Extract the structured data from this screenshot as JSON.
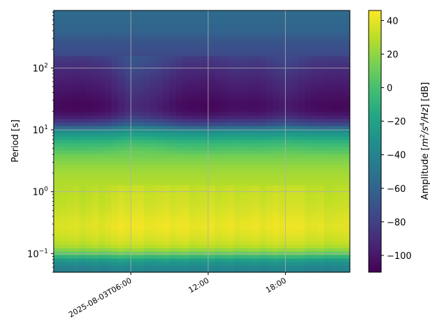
{
  "chart_data": {
    "type": "heatmap",
    "title": "",
    "xlabel": "",
    "ylabel": "Period [s]",
    "x_tick_labels": [
      {
        "label": "2025-08-03T06:00",
        "hour": 6
      },
      {
        "label": "12:00",
        "hour": 12
      },
      {
        "label": "18:00",
        "hour": 18
      }
    ],
    "x_range_hours": [
      0,
      23
    ],
    "y_scale": "log",
    "y_range": [
      0.05,
      850
    ],
    "y_tick_labels": [
      {
        "value": 0.1,
        "base": "10",
        "exp": "−1"
      },
      {
        "value": 1,
        "base": "10",
        "exp": "0"
      },
      {
        "value": 10,
        "base": "10",
        "exp": "1"
      },
      {
        "value": 100,
        "base": "10",
        "exp": "2"
      }
    ],
    "grid": true,
    "colorbar": {
      "colormap": "viridis",
      "range": [
        -110,
        46
      ],
      "label_prefix": "Amplitude [",
      "label_math": "m",
      "label_sup1": "2",
      "label_mid": "/s",
      "label_sup2": "4",
      "label_tail": "/Hz",
      "label_suffix": "] [dB]",
      "ticks": [
        "40",
        "20",
        "0",
        "−20",
        "−40",
        "−60",
        "−80",
        "−100"
      ],
      "tick_values": [
        40,
        20,
        0,
        -20,
        -40,
        -60,
        -80,
        -100
      ]
    },
    "profile": {
      "log10_period": [
        -1.3,
        -1.2,
        -1.1,
        -1.0,
        -0.9,
        -0.8,
        -0.7,
        -0.6,
        -0.5,
        -0.4,
        -0.3,
        -0.2,
        -0.1,
        0.0,
        0.2,
        0.4,
        0.6,
        0.8,
        1.0,
        1.1,
        1.2,
        1.3,
        1.4,
        1.5,
        1.6,
        1.8,
        2.0,
        2.2,
        2.4,
        2.6,
        2.93
      ],
      "amplitude_db": [
        -45,
        -40,
        -25,
        5,
        25,
        32,
        35,
        38,
        38,
        36,
        34,
        32,
        31,
        30,
        27,
        22,
        12,
        -5,
        -35,
        -70,
        -88,
        -98,
        -100,
        -98,
        -95,
        -90,
        -83,
        -75,
        -70,
        -60,
        -55
      ]
    },
    "daily_variation": {
      "hours": [
        0,
        2,
        4,
        5.5,
        6,
        8,
        10,
        12,
        14,
        16,
        18,
        20,
        22,
        23
      ],
      "microseism_offset_db": [
        0,
        -1,
        2,
        5,
        6,
        4,
        5,
        3,
        4,
        3,
        6,
        2,
        1,
        0
      ],
      "longperiod_offset_db": [
        -6,
        -8,
        -5,
        5,
        10,
        4,
        -6,
        -8,
        -4,
        -5,
        2,
        -5,
        -7,
        -6
      ]
    }
  }
}
